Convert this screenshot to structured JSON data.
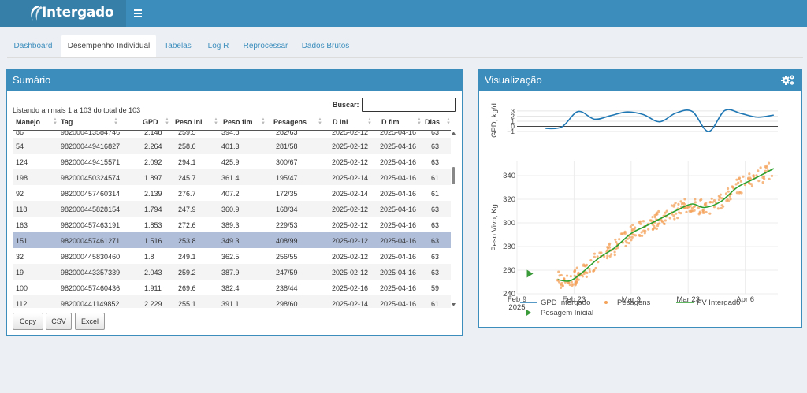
{
  "app": {
    "brand": "Intergado"
  },
  "tabs": [
    {
      "label": "Dashboard",
      "active": false
    },
    {
      "label": "Desempenho Individual",
      "active": true
    },
    {
      "label": "Tabelas",
      "active": false
    },
    {
      "label": "Log R",
      "active": false
    },
    {
      "label": "Reprocessar",
      "active": false
    },
    {
      "label": "Dados Brutos",
      "active": false
    }
  ],
  "summary": {
    "title": "Sumário",
    "listing_info": "Listando animais 1 a 103 do total de 103",
    "search_label": "Buscar:",
    "search_value": "",
    "columns": [
      "Manejo",
      "Tag",
      "GPD",
      "Peso ini",
      "Peso fim",
      "Pesagens",
      "D ini",
      "D fim",
      "Dias"
    ],
    "partial_row": [
      "86",
      "982000413584746",
      "2.148",
      "259.5",
      "394.8",
      "282/63",
      "2025-02-12",
      "2025-04-16",
      "63"
    ],
    "rows": [
      [
        "54",
        "982000449416827",
        "2.264",
        "258.6",
        "401.3",
        "281/58",
        "2025-02-12",
        "2025-04-16",
        "63"
      ],
      [
        "124",
        "982000449415571",
        "2.092",
        "294.1",
        "425.9",
        "300/67",
        "2025-02-12",
        "2025-04-16",
        "63"
      ],
      [
        "198",
        "982000450324574",
        "1.897",
        "245.7",
        "361.4",
        "195/47",
        "2025-02-14",
        "2025-04-16",
        "61"
      ],
      [
        "92",
        "982000457460314",
        "2.139",
        "276.7",
        "407.2",
        "172/35",
        "2025-02-14",
        "2025-04-16",
        "61"
      ],
      [
        "118",
        "982000445828154",
        "1.794",
        "247.9",
        "360.9",
        "168/34",
        "2025-02-12",
        "2025-04-16",
        "63"
      ],
      [
        "163",
        "982000457463191",
        "1.853",
        "272.6",
        "389.3",
        "229/53",
        "2025-02-12",
        "2025-04-16",
        "63"
      ],
      [
        "151",
        "982000457461271",
        "1.516",
        "253.8",
        "349.3",
        "408/99",
        "2025-02-12",
        "2025-04-16",
        "63"
      ],
      [
        "32",
        "982000445830460",
        "1.8",
        "249.1",
        "362.5",
        "256/55",
        "2025-02-12",
        "2025-04-16",
        "63"
      ],
      [
        "19",
        "982000443357339",
        "2.043",
        "259.2",
        "387.9",
        "247/59",
        "2025-02-12",
        "2025-04-16",
        "63"
      ],
      [
        "100",
        "982000457460436",
        "1.911",
        "269.6",
        "382.4",
        "238/44",
        "2025-02-16",
        "2025-04-16",
        "59"
      ],
      [
        "112",
        "982000441149852",
        "2.229",
        "255.1",
        "391.1",
        "298/60",
        "2025-02-14",
        "2025-04-16",
        "61"
      ]
    ],
    "selected_manejo": "151",
    "buttons": [
      "Copy",
      "CSV",
      "Excel"
    ]
  },
  "visualization": {
    "title": "Visualização",
    "legend": [
      "GPD Intergado",
      "Pesagens",
      "PV Intergado",
      "Pesagem Inicial"
    ],
    "colors": {
      "gpd": "#1f77b4",
      "pesagens": "#f4a259",
      "pv": "#2ca02c",
      "pesagem_inicial": "#3a9a3a"
    }
  },
  "chart_data": [
    {
      "type": "line",
      "ylabel": "GPD, kg/d",
      "yticks": [
        "3",
        "2",
        "1",
        "0",
        "−1"
      ],
      "ylim": [
        -1.3,
        3.6
      ],
      "xlim": [
        "2025-02-09",
        "2025-04-14"
      ],
      "series": [
        {
          "name": "GPD Intergado",
          "x": [
            "2025-02-16",
            "2025-02-20",
            "2025-02-24",
            "2025-02-28",
            "2025-03-04",
            "2025-03-08",
            "2025-03-12",
            "2025-03-16",
            "2025-03-20",
            "2025-03-24",
            "2025-03-28",
            "2025-04-01",
            "2025-04-05",
            "2025-04-09",
            "2025-04-13"
          ],
          "y": [
            -0.4,
            -0.1,
            2.9,
            1.4,
            2.1,
            2.8,
            2.3,
            0.9,
            2.6,
            2.9,
            -1.0,
            3.1,
            2.5,
            1.8,
            2.2
          ]
        }
      ]
    },
    {
      "type": "scatter",
      "ylabel": "Peso Vivo, Kg",
      "xlabel_ticks": [
        "Feb 9\n2025",
        "Feb 23",
        "Mar 9",
        "Mar 23",
        "Apr 6"
      ],
      "xticks": [
        "2025-02-09",
        "2025-02-23",
        "2025-03-09",
        "2025-03-23",
        "2025-04-06"
      ],
      "yticks": [
        240,
        260,
        280,
        300,
        320,
        340
      ],
      "ylim": [
        240,
        352
      ],
      "xlim": [
        "2025-02-09",
        "2025-04-14"
      ],
      "series": [
        {
          "name": "PV Intergado",
          "x": [
            "2025-02-19",
            "2025-02-22",
            "2025-02-25",
            "2025-03-01",
            "2025-03-05",
            "2025-03-09",
            "2025-03-13",
            "2025-03-17",
            "2025-03-21",
            "2025-03-24",
            "2025-03-27",
            "2025-03-31",
            "2025-04-04",
            "2025-04-08",
            "2025-04-13"
          ],
          "y": [
            252,
            251,
            258,
            270,
            279,
            291,
            298,
            305,
            312,
            316,
            313,
            318,
            330,
            337,
            346
          ]
        },
        {
          "name": "Pesagens",
          "x": [],
          "y": []
        },
        {
          "name": "Pesagem Inicial",
          "x": [
            "2025-02-12"
          ],
          "y": [
            257
          ]
        }
      ]
    }
  ]
}
